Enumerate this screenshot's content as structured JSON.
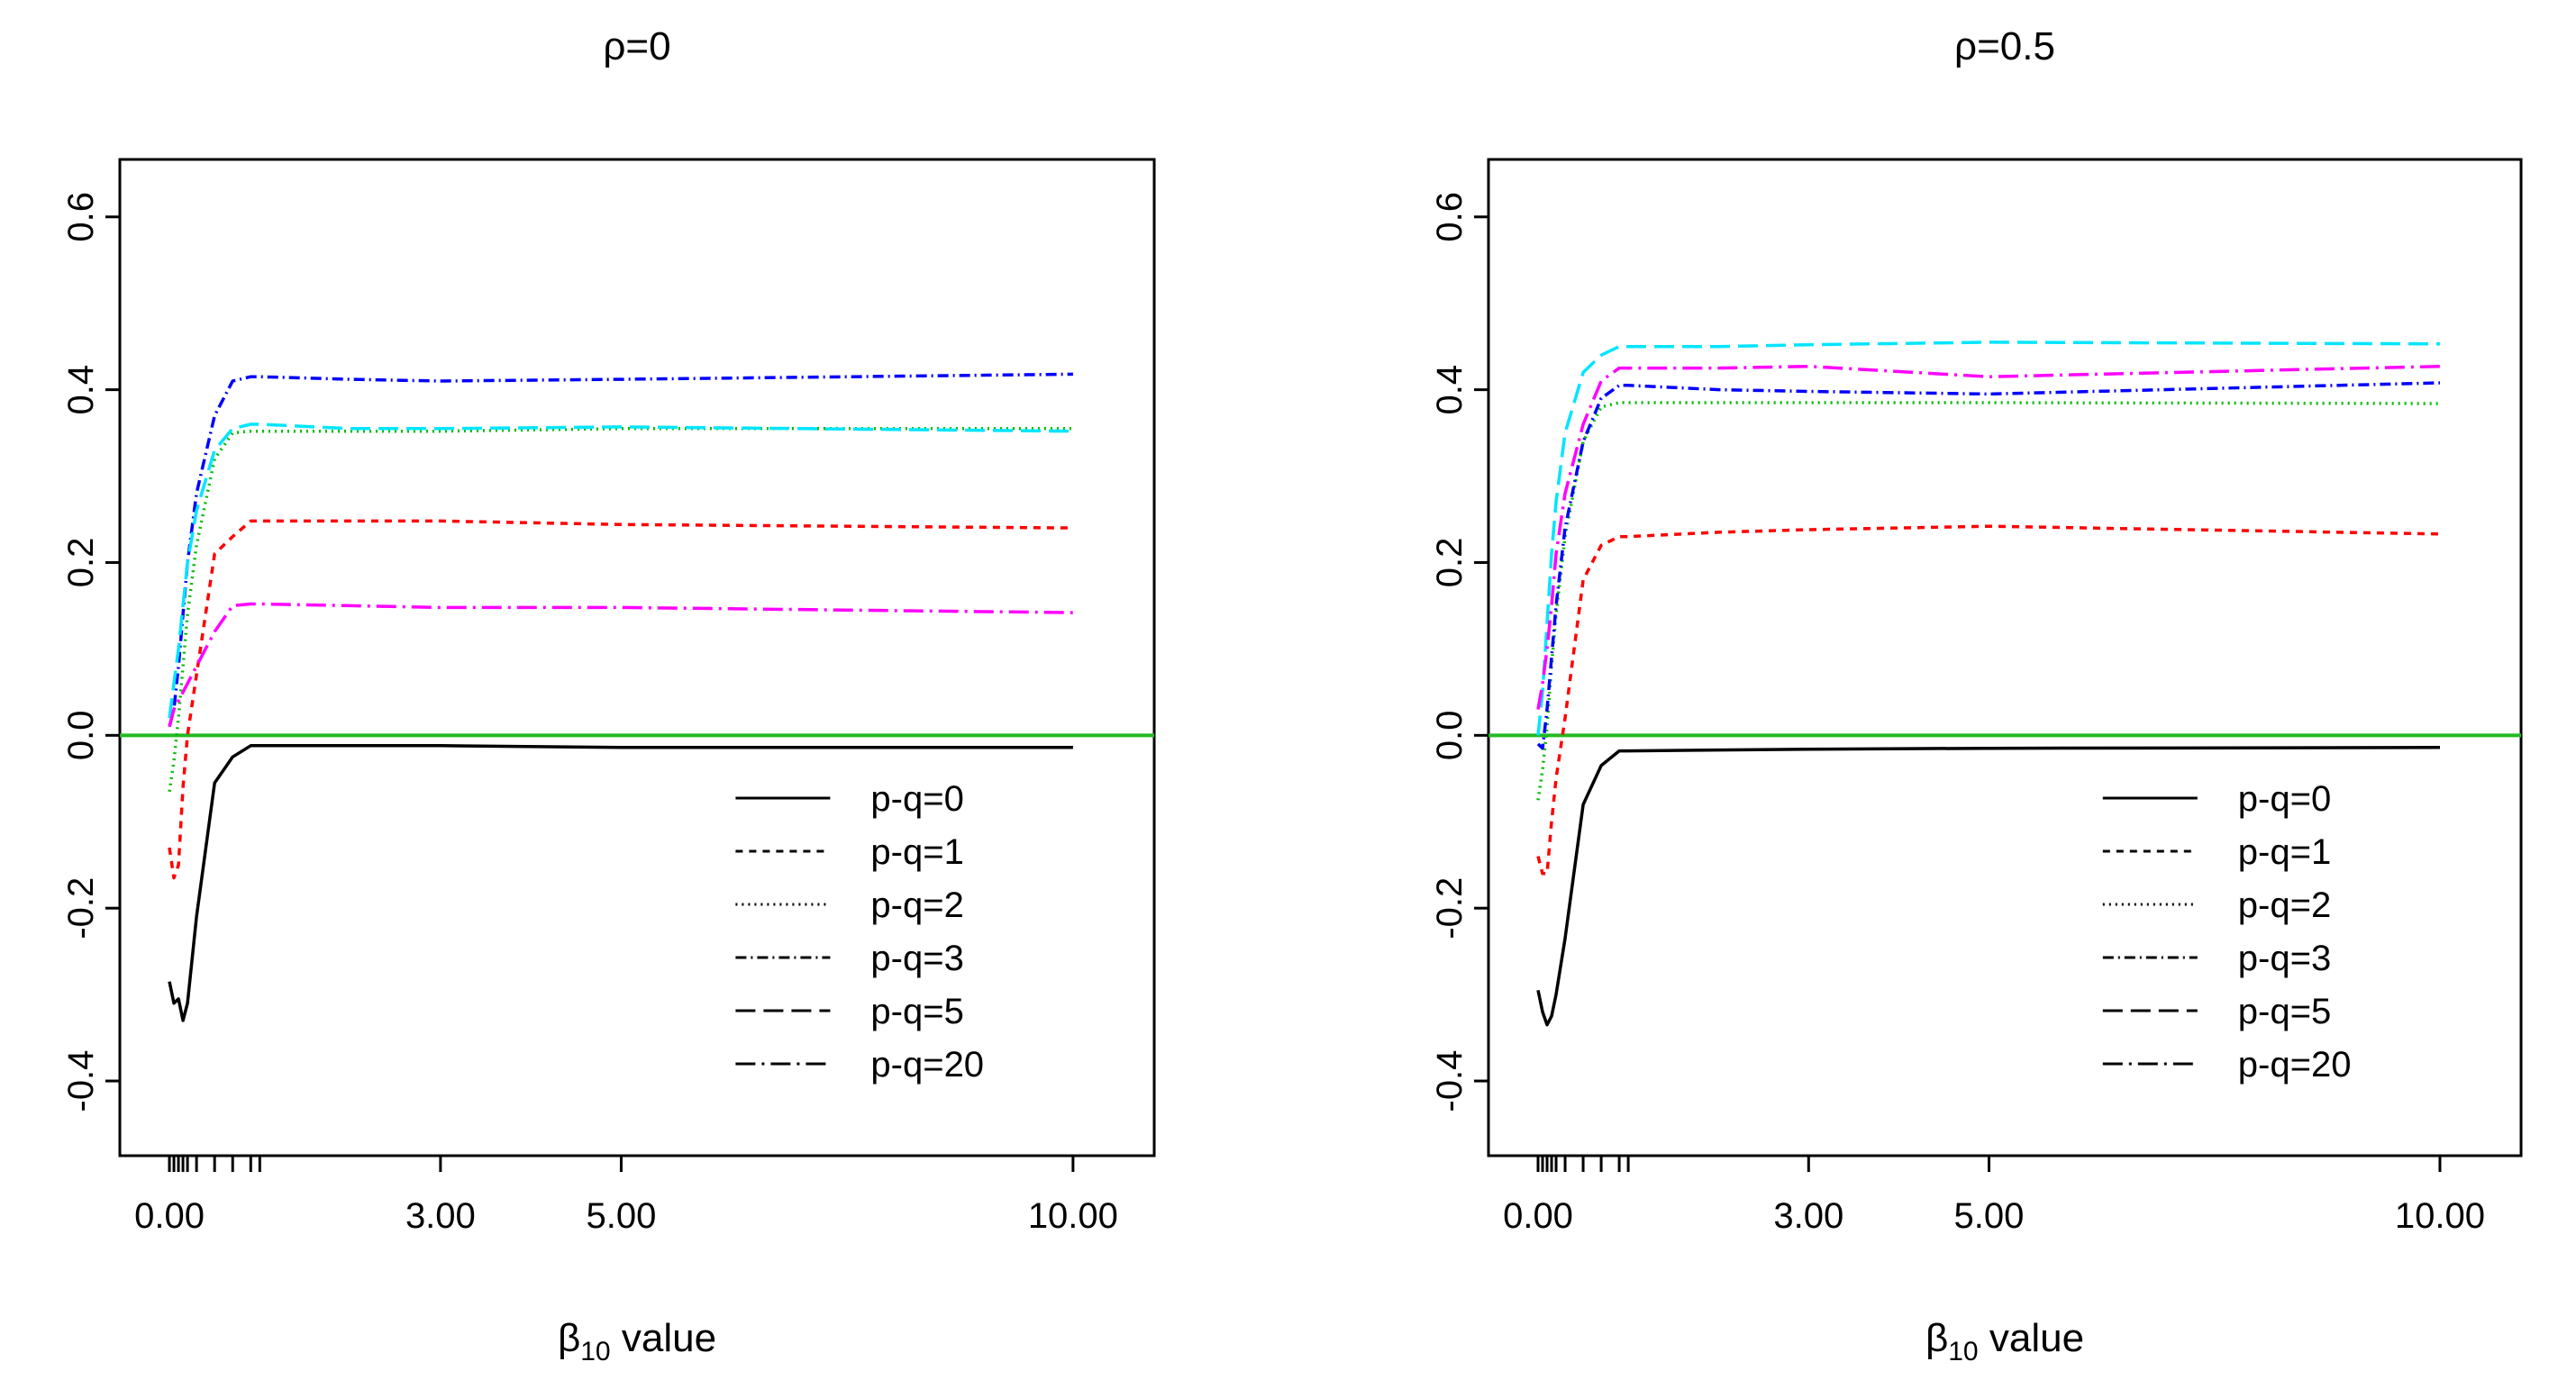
{
  "chart_data": [
    {
      "type": "line",
      "title": "ρ=0",
      "xlabel": "β10 value",
      "xlabel_base": "β",
      "xlabel_sub": "10",
      "xlabel_rest": " value",
      "ylabel": "",
      "xlim": [
        -0.1,
        10.45
      ],
      "ylim": [
        -0.45,
        0.63
      ],
      "x_ticks": [
        0,
        3,
        5,
        10
      ],
      "x_tick_labels": [
        "0.00",
        "3.00",
        "5.00",
        "10.00"
      ],
      "x_minor_ticks": [
        0,
        0.05,
        0.1,
        0.15,
        0.2,
        0.3,
        0.5,
        0.7,
        0.9,
        1.0
      ],
      "y_ticks": [
        -0.4,
        -0.2,
        0.0,
        0.2,
        0.4,
        0.6
      ],
      "y_tick_labels": [
        "-0.4",
        "-0.2",
        "0.0",
        "0.2",
        "0.4",
        "0.6"
      ],
      "reference_line": {
        "y": 0,
        "color": "#22bb22"
      },
      "legend_position": "bottom-right",
      "series": [
        {
          "name": "p-q=0",
          "color": "#000000",
          "dash": "",
          "x": [
            0,
            0.05,
            0.1,
            0.15,
            0.2,
            0.3,
            0.5,
            0.7,
            0.9,
            1.0,
            2,
            3,
            5,
            10
          ],
          "y": [
            -0.285,
            -0.31,
            -0.305,
            -0.33,
            -0.31,
            -0.21,
            -0.055,
            -0.025,
            -0.012,
            -0.012,
            -0.012,
            -0.012,
            -0.014,
            -0.014
          ]
        },
        {
          "name": "p-q=1",
          "color": "#ff0000",
          "dash": "8,7",
          "x": [
            0,
            0.05,
            0.1,
            0.15,
            0.2,
            0.3,
            0.5,
            0.7,
            0.9,
            1.0,
            2,
            3,
            5,
            10
          ],
          "y": [
            -0.13,
            -0.165,
            -0.15,
            -0.06,
            0.0,
            0.07,
            0.21,
            0.23,
            0.248,
            0.248,
            0.248,
            0.248,
            0.244,
            0.24
          ]
        },
        {
          "name": "p-q=2",
          "color": "#00bb00",
          "dash": "2,5",
          "x": [
            0,
            0.05,
            0.1,
            0.15,
            0.2,
            0.3,
            0.5,
            0.7,
            0.9,
            1.0,
            2,
            3,
            5,
            10
          ],
          "y": [
            -0.065,
            -0.03,
            0.02,
            0.08,
            0.14,
            0.22,
            0.32,
            0.35,
            0.352,
            0.352,
            0.352,
            0.352,
            0.355,
            0.355
          ]
        },
        {
          "name": "p-q=3",
          "color": "#0000ff",
          "dash": "12,5,2,5",
          "x": [
            0,
            0.05,
            0.1,
            0.15,
            0.2,
            0.3,
            0.5,
            0.7,
            0.9,
            1.0,
            2,
            3,
            5,
            10
          ],
          "y": [
            0.01,
            0.03,
            0.08,
            0.14,
            0.2,
            0.28,
            0.37,
            0.41,
            0.415,
            0.415,
            0.412,
            0.41,
            0.412,
            0.418
          ]
        },
        {
          "name": "p-q=5",
          "color": "#00e5ff",
          "dash": "22,9",
          "x": [
            0,
            0.05,
            0.1,
            0.15,
            0.2,
            0.3,
            0.5,
            0.7,
            0.9,
            1.0,
            2,
            3,
            5,
            10
          ],
          "y": [
            0.02,
            0.06,
            0.1,
            0.15,
            0.2,
            0.26,
            0.33,
            0.355,
            0.36,
            0.36,
            0.355,
            0.355,
            0.357,
            0.352
          ]
        },
        {
          "name": "p-q=20",
          "color": "#ff00ff",
          "dash": "22,7,3,7",
          "x": [
            0,
            0.05,
            0.1,
            0.15,
            0.2,
            0.3,
            0.5,
            0.7,
            0.9,
            1.0,
            2,
            3,
            5,
            10
          ],
          "y": [
            0.01,
            0.03,
            0.04,
            0.05,
            0.06,
            0.08,
            0.12,
            0.15,
            0.152,
            0.152,
            0.15,
            0.148,
            0.148,
            0.142
          ]
        }
      ]
    },
    {
      "type": "line",
      "title": "ρ=0.5",
      "xlabel": "β10 value",
      "xlabel_base": "β",
      "xlabel_sub": "10",
      "xlabel_rest": " value",
      "ylabel": "",
      "xlim": [
        -0.1,
        10.45
      ],
      "ylim": [
        -0.45,
        0.63
      ],
      "x_ticks": [
        0,
        3,
        5,
        10
      ],
      "x_tick_labels": [
        "0.00",
        "3.00",
        "5.00",
        "10.00"
      ],
      "x_minor_ticks": [
        0,
        0.05,
        0.1,
        0.15,
        0.2,
        0.3,
        0.5,
        0.7,
        0.9,
        1.0
      ],
      "y_ticks": [
        -0.4,
        -0.2,
        0.0,
        0.2,
        0.4,
        0.6
      ],
      "y_tick_labels": [
        "-0.4",
        "-0.2",
        "0.0",
        "0.2",
        "0.4",
        "0.6"
      ],
      "reference_line": {
        "y": 0,
        "color": "#22bb22"
      },
      "legend_position": "bottom-right",
      "series": [
        {
          "name": "p-q=0",
          "color": "#000000",
          "dash": "",
          "x": [
            0,
            0.05,
            0.1,
            0.15,
            0.2,
            0.3,
            0.5,
            0.7,
            0.9,
            1.0,
            2,
            3,
            5,
            10
          ],
          "y": [
            -0.295,
            -0.32,
            -0.335,
            -0.325,
            -0.3,
            -0.235,
            -0.08,
            -0.035,
            -0.018,
            -0.018,
            -0.017,
            -0.016,
            -0.015,
            -0.014
          ]
        },
        {
          "name": "p-q=1",
          "color": "#ff0000",
          "dash": "8,7",
          "x": [
            0,
            0.05,
            0.1,
            0.15,
            0.2,
            0.3,
            0.5,
            0.7,
            0.9,
            1.0,
            2,
            3,
            5,
            10
          ],
          "y": [
            -0.14,
            -0.16,
            -0.16,
            -0.1,
            -0.05,
            0.02,
            0.18,
            0.22,
            0.23,
            0.23,
            0.235,
            0.238,
            0.242,
            0.233
          ]
        },
        {
          "name": "p-q=2",
          "color": "#00bb00",
          "dash": "2,5",
          "x": [
            0,
            0.05,
            0.1,
            0.15,
            0.2,
            0.3,
            0.5,
            0.7,
            0.9,
            1.0,
            2,
            3,
            5,
            10
          ],
          "y": [
            -0.075,
            -0.04,
            0.01,
            0.08,
            0.14,
            0.23,
            0.34,
            0.38,
            0.385,
            0.385,
            0.385,
            0.385,
            0.385,
            0.384
          ]
        },
        {
          "name": "p-q=3",
          "color": "#0000ff",
          "dash": "12,5,2,5",
          "x": [
            0,
            0.05,
            0.1,
            0.15,
            0.2,
            0.3,
            0.5,
            0.7,
            0.9,
            1.0,
            2,
            3,
            5,
            10
          ],
          "y": [
            -0.01,
            -0.015,
            0.03,
            0.09,
            0.15,
            0.24,
            0.34,
            0.39,
            0.405,
            0.405,
            0.4,
            0.398,
            0.395,
            0.408
          ]
        },
        {
          "name": "p-q=5",
          "color": "#00e5ff",
          "dash": "22,9",
          "x": [
            0,
            0.05,
            0.1,
            0.15,
            0.2,
            0.3,
            0.5,
            0.7,
            0.9,
            1.0,
            2,
            3,
            5,
            10
          ],
          "y": [
            0.0,
            0.05,
            0.13,
            0.21,
            0.27,
            0.35,
            0.42,
            0.44,
            0.45,
            0.45,
            0.45,
            0.452,
            0.455,
            0.453
          ]
        },
        {
          "name": "p-q=20",
          "color": "#ff00ff",
          "dash": "22,7,3,7",
          "x": [
            0,
            0.05,
            0.1,
            0.15,
            0.2,
            0.3,
            0.5,
            0.7,
            0.9,
            1.0,
            2,
            3,
            5,
            10
          ],
          "y": [
            0.03,
            0.06,
            0.1,
            0.15,
            0.21,
            0.28,
            0.36,
            0.41,
            0.425,
            0.425,
            0.425,
            0.427,
            0.415,
            0.427
          ]
        }
      ]
    }
  ]
}
